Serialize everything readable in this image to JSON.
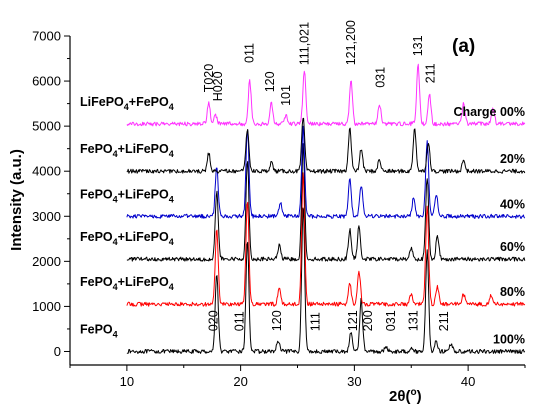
{
  "chart_data": {
    "type": "line",
    "panel_label": "(a)",
    "xlabel": "2θ(°)",
    "xlabel_parts": {
      "theta": "2θ",
      "open": "(",
      "deg": "o",
      "close": ")"
    },
    "ylabel": "Intensity (a.u.)",
    "xlim": [
      5,
      45
    ],
    "ylim": [
      -300,
      7000
    ],
    "x_ticks": [
      10,
      20,
      30,
      40
    ],
    "y_ticks": [
      0,
      1000,
      2000,
      3000,
      4000,
      5000,
      6000,
      7000
    ],
    "grid": false,
    "series": [
      {
        "label_html": "FePO<sub>4</sub>",
        "label_parts": [
          "FePO",
          "4"
        ],
        "percent": "100%",
        "color": "#000000",
        "baseline": 0,
        "peaks": [
          [
            17.9,
            1750
          ],
          [
            20.6,
            2450
          ],
          [
            23.3,
            230
          ],
          [
            25.5,
            3250
          ],
          [
            29.7,
            420
          ],
          [
            30.6,
            1150
          ],
          [
            32.8,
            100
          ],
          [
            35.0,
            100
          ],
          [
            36.4,
            2250
          ],
          [
            37.2,
            230
          ],
          [
            38.5,
            180
          ]
        ]
      },
      {
        "label_html": "FePO<sub>4</sub>+LiFePO<sub>4</sub>",
        "label_parts": [
          "FePO",
          "4",
          "+LiFePO",
          "4"
        ],
        "percent": "80%",
        "color": "#ff0000",
        "baseline": 1050,
        "peaks": [
          [
            17.9,
            1650
          ],
          [
            20.6,
            2300
          ],
          [
            23.4,
            350
          ],
          [
            25.5,
            2950
          ],
          [
            29.6,
            450
          ],
          [
            30.4,
            750
          ],
          [
            35.0,
            200
          ],
          [
            36.4,
            2150
          ],
          [
            37.3,
            380
          ],
          [
            39.6,
            220
          ],
          [
            42.0,
            180
          ]
        ]
      },
      {
        "label_html": "FePO<sub>4</sub>+LiFePO<sub>4</sub>",
        "label_parts": [
          "FePO",
          "4",
          "+LiFePO",
          "4"
        ],
        "percent": "60%",
        "color": "#000000",
        "baseline": 2050,
        "peaks": [
          [
            17.9,
            1500
          ],
          [
            20.6,
            2200
          ],
          [
            23.4,
            300
          ],
          [
            25.5,
            2550
          ],
          [
            29.6,
            650
          ],
          [
            30.4,
            700
          ],
          [
            35.0,
            250
          ],
          [
            36.4,
            1800
          ],
          [
            37.3,
            500
          ]
        ]
      },
      {
        "label_html": "FePO<sub>4</sub>+LiFePO<sub>4</sub>",
        "label_parts": [
          "FePO",
          "4",
          "+LiFePO",
          "4"
        ],
        "percent": "40%",
        "color": "#0000cc",
        "baseline": 3000,
        "peaks": [
          [
            17.9,
            1100
          ],
          [
            20.6,
            1950
          ],
          [
            23.5,
            300
          ],
          [
            25.5,
            2000
          ],
          [
            29.6,
            800
          ],
          [
            30.6,
            700
          ],
          [
            35.2,
            400
          ],
          [
            36.4,
            1650
          ],
          [
            37.2,
            500
          ]
        ]
      },
      {
        "label_html": "FePO<sub>4</sub>+LiFePO<sub>4</sub>",
        "label_parts": [
          "FePO",
          "4",
          "+LiFePO",
          "4"
        ],
        "percent": "20%",
        "color": "#000000",
        "baseline": 4000,
        "peaks": [
          [
            17.2,
            400
          ],
          [
            20.6,
            950
          ],
          [
            22.7,
            200
          ],
          [
            25.5,
            1200
          ],
          [
            29.6,
            950
          ],
          [
            30.6,
            500
          ],
          [
            32.2,
            250
          ],
          [
            35.3,
            950
          ],
          [
            36.5,
            650
          ],
          [
            39.6,
            250
          ]
        ]
      },
      {
        "label_html": "LiFePO<sub>4</sub>+FePO<sub>4</sub>",
        "label_parts": [
          "LiFePO",
          "4",
          "+FePO",
          "4"
        ],
        "percent": "Charge 00%",
        "color": "#ff33ff",
        "baseline": 5050,
        "peaks": [
          [
            17.2,
            450
          ],
          [
            17.8,
            200
          ],
          [
            20.8,
            950
          ],
          [
            22.7,
            450
          ],
          [
            24.0,
            200
          ],
          [
            25.6,
            1200
          ],
          [
            29.7,
            950
          ],
          [
            32.2,
            450
          ],
          [
            35.6,
            1300
          ],
          [
            36.6,
            650
          ],
          [
            39.6,
            450
          ],
          [
            42.2,
            350
          ]
        ]
      }
    ],
    "peak_labels_top": [
      {
        "text": "T020",
        "x": 17.2,
        "y": 5750
      },
      {
        "text": "H020",
        "x": 18.0,
        "y": 5550
      },
      {
        "text": "011",
        "x": 20.8,
        "y": 6400
      },
      {
        "text": "120",
        "x": 22.6,
        "y": 5750
      },
      {
        "text": "101",
        "x": 24.0,
        "y": 5450
      },
      {
        "text": "111,021",
        "x": 25.6,
        "y": 6350
      },
      {
        "text": "121,200",
        "x": 29.7,
        "y": 6350
      },
      {
        "text": "031",
        "x": 32.3,
        "y": 5850
      },
      {
        "text": "131",
        "x": 35.6,
        "y": 6550
      },
      {
        "text": "211",
        "x": 36.7,
        "y": 5950
      }
    ],
    "peak_labels_bottom": [
      {
        "text": "020",
        "x": 17.6,
        "y": 450
      },
      {
        "text": "011",
        "x": 19.9,
        "y": 450
      },
      {
        "text": "120",
        "x": 23.2,
        "y": 450
      },
      {
        "text": "111",
        "x": 26.6,
        "y": 450
      },
      {
        "text": "121",
        "x": 29.9,
        "y": 450
      },
      {
        "text": "200",
        "x": 31.2,
        "y": 450
      },
      {
        "text": "031",
        "x": 33.2,
        "y": 450
      },
      {
        "text": "131",
        "x": 35.2,
        "y": 450
      },
      {
        "text": "211",
        "x": 37.9,
        "y": 450
      }
    ]
  }
}
